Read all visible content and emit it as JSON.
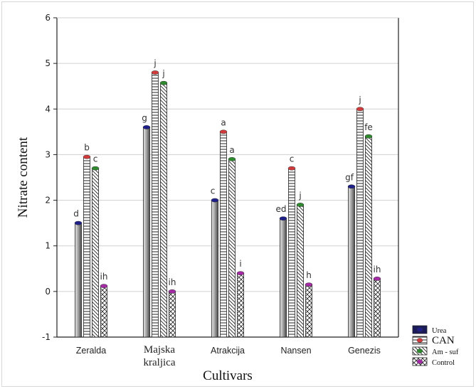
{
  "chart_data": {
    "type": "bar",
    "title": "",
    "xlabel": "Cultivars",
    "ylabel": "Nitrate content",
    "ylim": [
      -1,
      6
    ],
    "yticks": [
      -1,
      0,
      1,
      2,
      3,
      4,
      5,
      6
    ],
    "grid": true,
    "legend_position": "bottom-right",
    "categories": [
      [
        "Zeralda"
      ],
      [
        "Majska",
        "kraljica"
      ],
      [
        "Atrakcija"
      ],
      [
        "Nansen"
      ],
      [
        "Genezis"
      ]
    ],
    "series": [
      {
        "name": "Urea",
        "values": [
          1.5,
          3.6,
          2.0,
          1.6,
          2.3
        ],
        "letters": [
          "d",
          "g",
          "c",
          "ed",
          "gf"
        ],
        "cap": "#1f1f8a",
        "pattern": "solid"
      },
      {
        "name": "CAN",
        "values": [
          2.95,
          4.8,
          3.5,
          2.7,
          4.0
        ],
        "letters": [
          "b",
          "j",
          "a",
          "c",
          "j"
        ],
        "cap": "#d23b3b",
        "pattern": "hlines"
      },
      {
        "name": "Am - suf",
        "values": [
          2.7,
          4.57,
          2.9,
          1.9,
          3.4
        ],
        "letters": [
          "c",
          "j",
          "a",
          "j",
          "fe"
        ],
        "cap": "#2f8a2f",
        "pattern": "diag"
      },
      {
        "name": "Control",
        "values": [
          0.12,
          0.0,
          0.4,
          0.15,
          0.28
        ],
        "letters": [
          "ih",
          "ih",
          "i",
          "h",
          "ih"
        ],
        "cap": "#a52aa5",
        "pattern": "cross"
      }
    ]
  }
}
